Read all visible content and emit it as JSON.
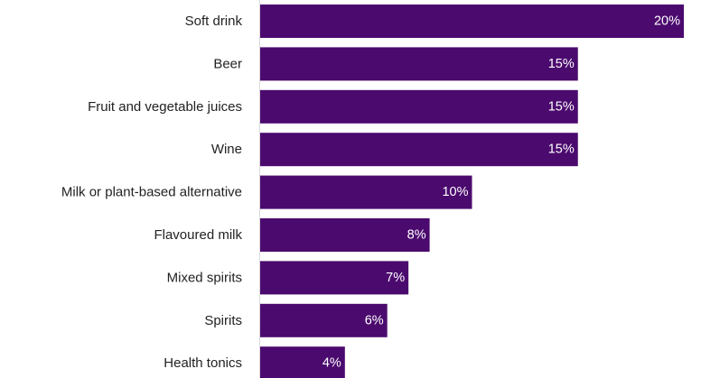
{
  "chart_data": {
    "type": "bar",
    "orientation": "horizontal",
    "title": "",
    "xlabel": "",
    "ylabel": "",
    "categories": [
      "Soft drink",
      "Beer",
      "Fruit and vegetable juices",
      "Wine",
      "Milk or plant-based alternative",
      "Flavoured milk",
      "Mixed spirits",
      "Spirits",
      "Health tonics"
    ],
    "values": [
      20,
      15,
      15,
      15,
      10,
      8,
      7,
      6,
      4
    ],
    "value_labels": [
      "20%",
      "15%",
      "15%",
      "15%",
      "10%",
      "8%",
      "7%",
      "6%",
      "4%"
    ],
    "xlim": [
      0,
      20
    ],
    "grid": false,
    "legend": "none",
    "bar_color": "#4b0a6e",
    "label_color": "#ffffff"
  }
}
